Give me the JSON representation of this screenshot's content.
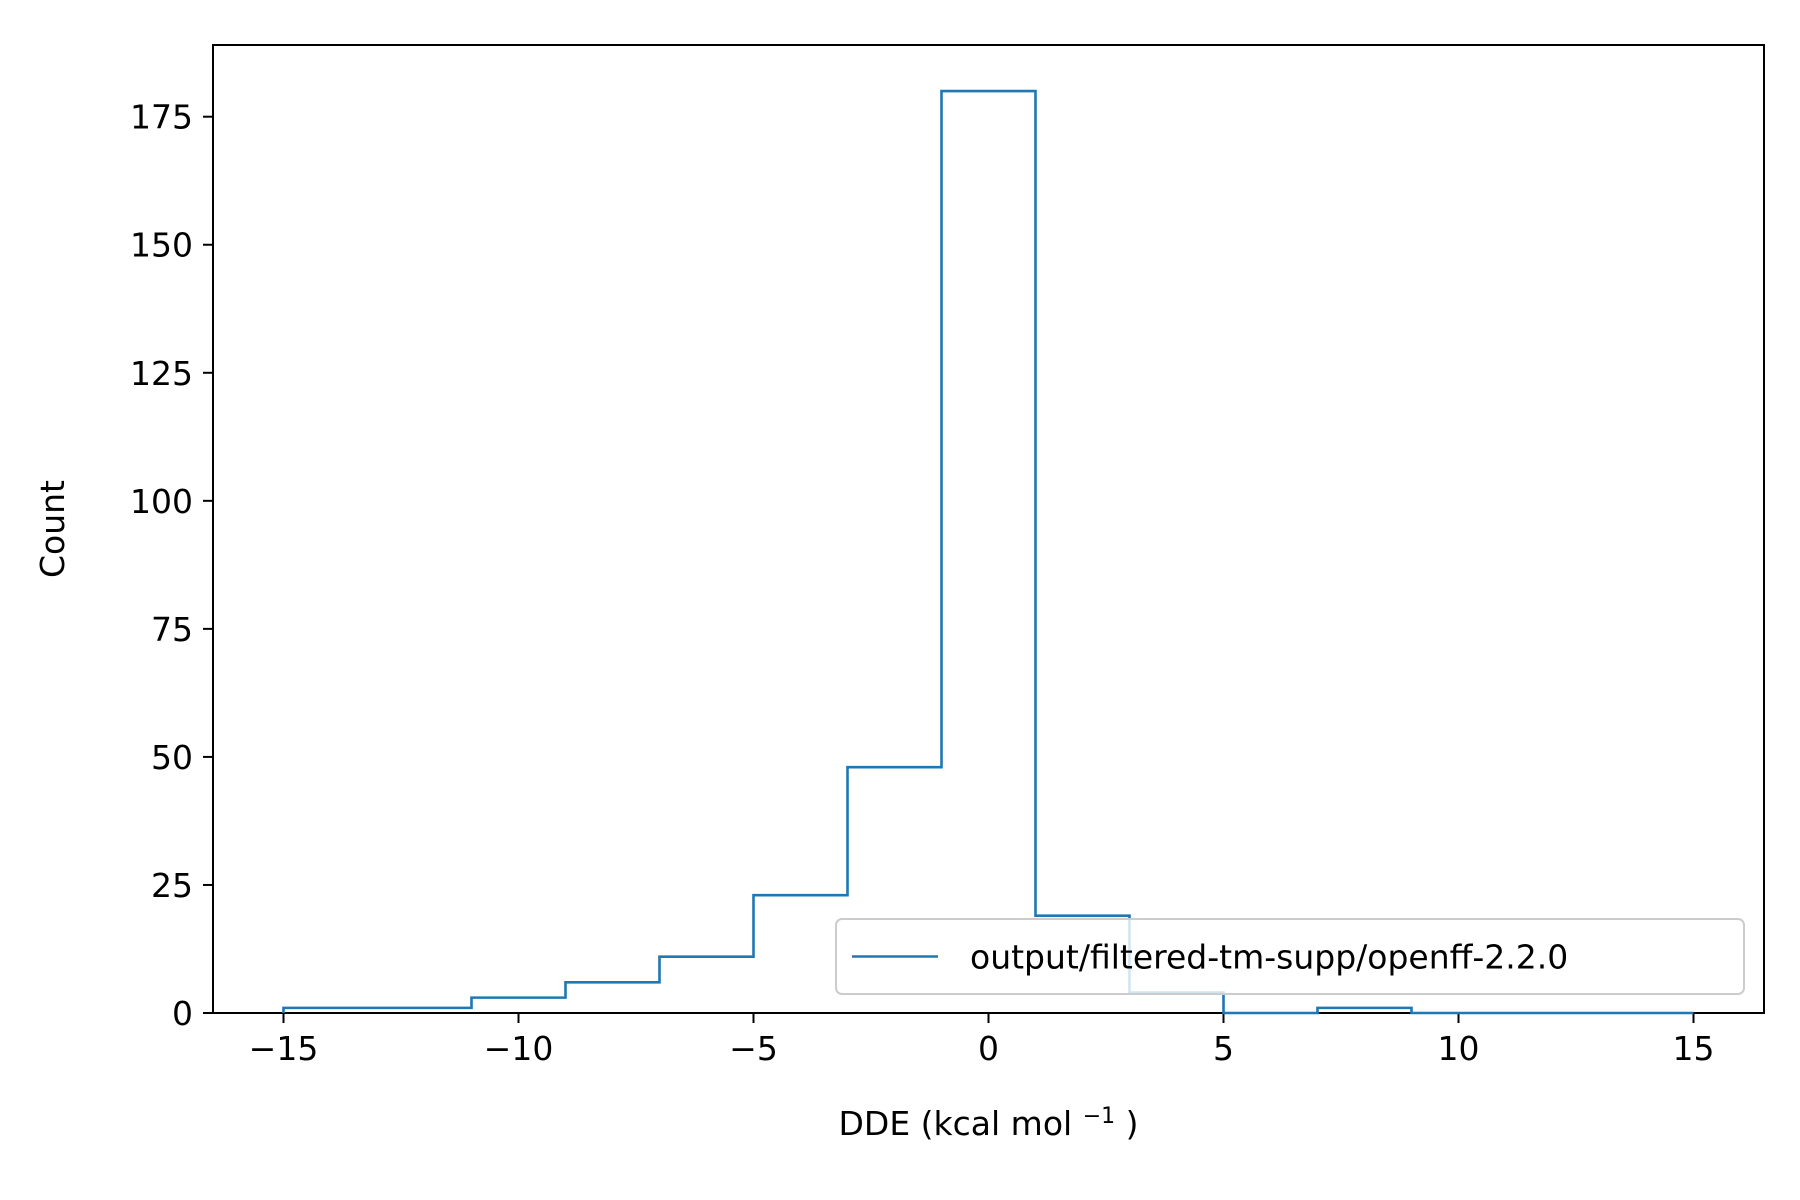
{
  "chart_data": {
    "type": "histogram",
    "title": "",
    "xlabel": "DDE (kcal mol",
    "xlabel_superscript": "−1",
    "xlabel_suffix": ")",
    "ylabel": "Count",
    "xlim": [
      -16.5,
      16.5
    ],
    "ylim": [
      0,
      189
    ],
    "xticks": [
      -15,
      -10,
      -5,
      0,
      5,
      10,
      15
    ],
    "xtick_labels": [
      "−15",
      "−10",
      "−5",
      "0",
      "5",
      "10",
      "15"
    ],
    "yticks": [
      0,
      25,
      50,
      75,
      100,
      125,
      150,
      175
    ],
    "ytick_labels": [
      "0",
      "25",
      "50",
      "75",
      "100",
      "125",
      "150",
      "175"
    ],
    "bin_edges": [
      -15,
      -13,
      -11,
      -9,
      -7,
      -5,
      -3,
      -1,
      1,
      3,
      5,
      7,
      9,
      11,
      13,
      15
    ],
    "series": [
      {
        "name": "output/filtered-tm-supp/openff-2.2.0",
        "color": "#1f77b4",
        "counts": [
          1,
          1,
          3,
          6,
          11,
          23,
          48,
          180,
          19,
          4,
          0,
          1,
          0,
          0,
          0
        ]
      }
    ],
    "grid": false,
    "legend_position": "lower-right"
  }
}
